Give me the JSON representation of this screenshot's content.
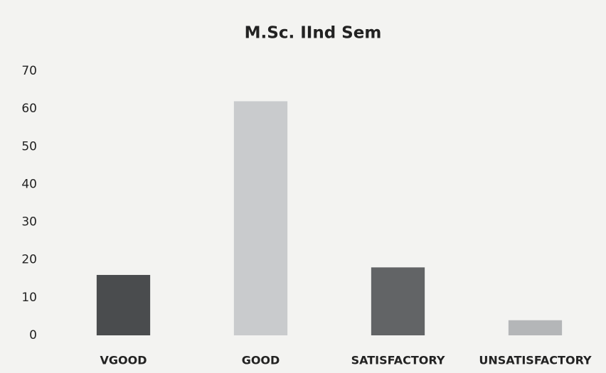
{
  "chart_data": {
    "type": "bar",
    "title": "M.Sc. IInd Sem",
    "categories": [
      "VGOOD",
      "GOOD",
      "SATISFACTORY",
      "UNSATISFACTORY"
    ],
    "values": [
      16,
      62,
      18,
      4
    ],
    "colors": [
      "#4a4c4e",
      "#c9cbcd",
      "#626466",
      "#b4b6b8"
    ],
    "ylim": [
      0,
      70
    ],
    "yticks": [
      0,
      10,
      20,
      30,
      40,
      50,
      60,
      70
    ],
    "grid": false
  }
}
